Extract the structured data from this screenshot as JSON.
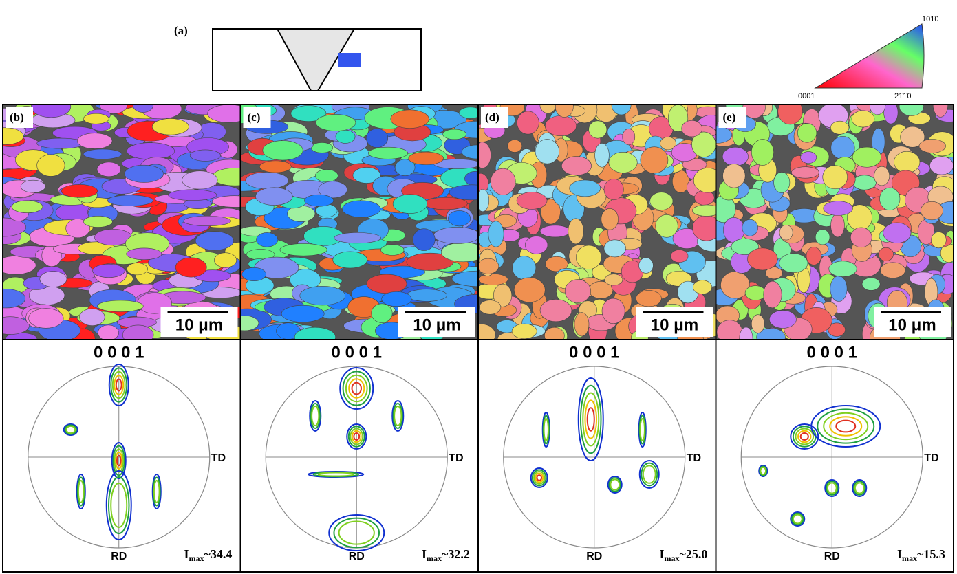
{
  "header": {
    "label": "(a)",
    "ipf": {
      "top": "101̄0",
      "left": "0001",
      "right": "21̄1̄0"
    }
  },
  "panels": [
    {
      "label": "(b)",
      "scale": "10 μm",
      "pole": "0 0 0 1",
      "rd": "RD",
      "td": "TD",
      "imax_symbol": "I",
      "imax_sub": "max",
      "imax_value": "~34.4"
    },
    {
      "label": "(c)",
      "scale": "10 μm",
      "pole": "0 0 0 1",
      "rd": "RD",
      "td": "TD",
      "imax_symbol": "I",
      "imax_sub": "max",
      "imax_value": "~32.2"
    },
    {
      "label": "(d)",
      "scale": "10 μm",
      "pole": "0 0 0 1",
      "rd": "RD",
      "td": "TD",
      "imax_symbol": "I",
      "imax_sub": "max",
      "imax_value": "~25.0"
    },
    {
      "label": "(e)",
      "scale": "10 μm",
      "pole": "0 0 0 1",
      "rd": "RD",
      "td": "TD",
      "imax_symbol": "I",
      "imax_sub": "max",
      "imax_value": "~15.3"
    }
  ]
}
